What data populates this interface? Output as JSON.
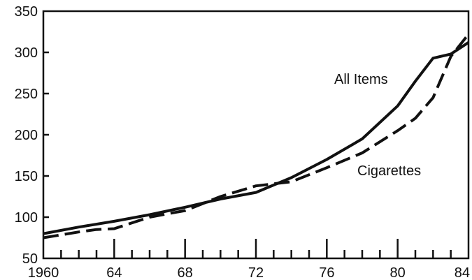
{
  "chart_data": {
    "type": "line",
    "title": "",
    "xlabel": "",
    "ylabel": "",
    "xlim": [
      1960,
      1984
    ],
    "ylim": [
      50,
      350
    ],
    "x_ticks": [
      {
        "value": 1960,
        "label": "1960"
      },
      {
        "value": 1964,
        "label": "64"
      },
      {
        "value": 1968,
        "label": "68"
      },
      {
        "value": 1972,
        "label": "72"
      },
      {
        "value": 1976,
        "label": "76"
      },
      {
        "value": 1980,
        "label": "80"
      },
      {
        "value": 1984,
        "label": "84"
      }
    ],
    "y_ticks": [
      50,
      100,
      150,
      200,
      250,
      300,
      350
    ],
    "grid": false,
    "series": [
      {
        "name": "All Items",
        "style": "solid",
        "color": "#111111",
        "x": [
          1960,
          1962,
          1964,
          1966,
          1968,
          1970,
          1972,
          1974,
          1976,
          1978,
          1980,
          1981,
          1982,
          1983,
          1984
        ],
        "y": [
          80,
          88,
          95,
          103,
          112,
          122,
          130,
          148,
          170,
          195,
          235,
          265,
          293,
          298,
          312
        ]
      },
      {
        "name": "Cigarettes",
        "style": "dashed",
        "color": "#111111",
        "x": [
          1960,
          1962,
          1963,
          1964,
          1966,
          1968,
          1970,
          1972,
          1974,
          1976,
          1978,
          1980,
          1981,
          1982,
          1983,
          1984
        ],
        "y": [
          75,
          82,
          85,
          86,
          100,
          108,
          125,
          138,
          143,
          160,
          178,
          205,
          220,
          245,
          295,
          322
        ]
      }
    ]
  }
}
